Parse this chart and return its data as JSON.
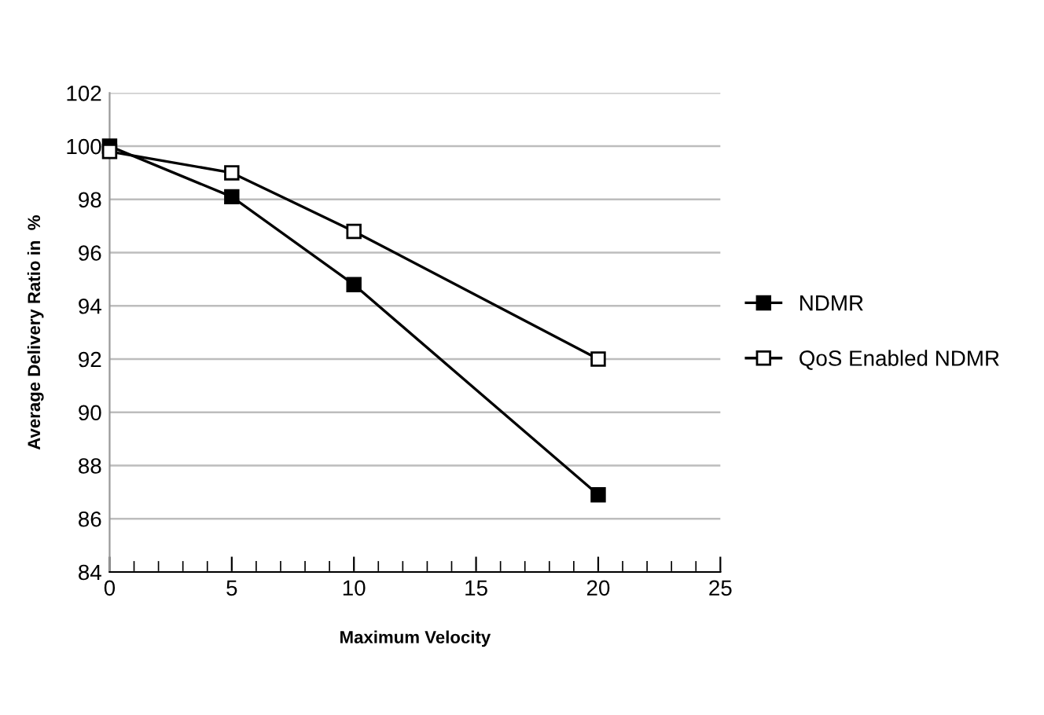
{
  "chart_data": {
    "type": "line",
    "xlabel": "Maximum Velocity",
    "ylabel": "Average Delivery Ratio in  %",
    "x": [
      0,
      5,
      10,
      20
    ],
    "series": [
      {
        "name": "NDMR",
        "color": "#000000",
        "values": [
          100,
          98.1,
          94.8,
          86.9
        ],
        "marker": "square"
      },
      {
        "name": "QoS Enabled NDMR",
        "color": "#000000",
        "values": [
          99.8,
          99.0,
          96.8,
          92.0
        ],
        "marker": "square"
      }
    ],
    "xlim": [
      0,
      25
    ],
    "xticks": [
      0,
      5,
      10,
      15,
      20,
      25
    ],
    "ylim": [
      84,
      102
    ],
    "yticks": [
      84,
      86,
      88,
      90,
      92,
      94,
      96,
      98,
      100,
      102
    ],
    "grid": "y",
    "legend": "right",
    "line_style": "solid"
  }
}
